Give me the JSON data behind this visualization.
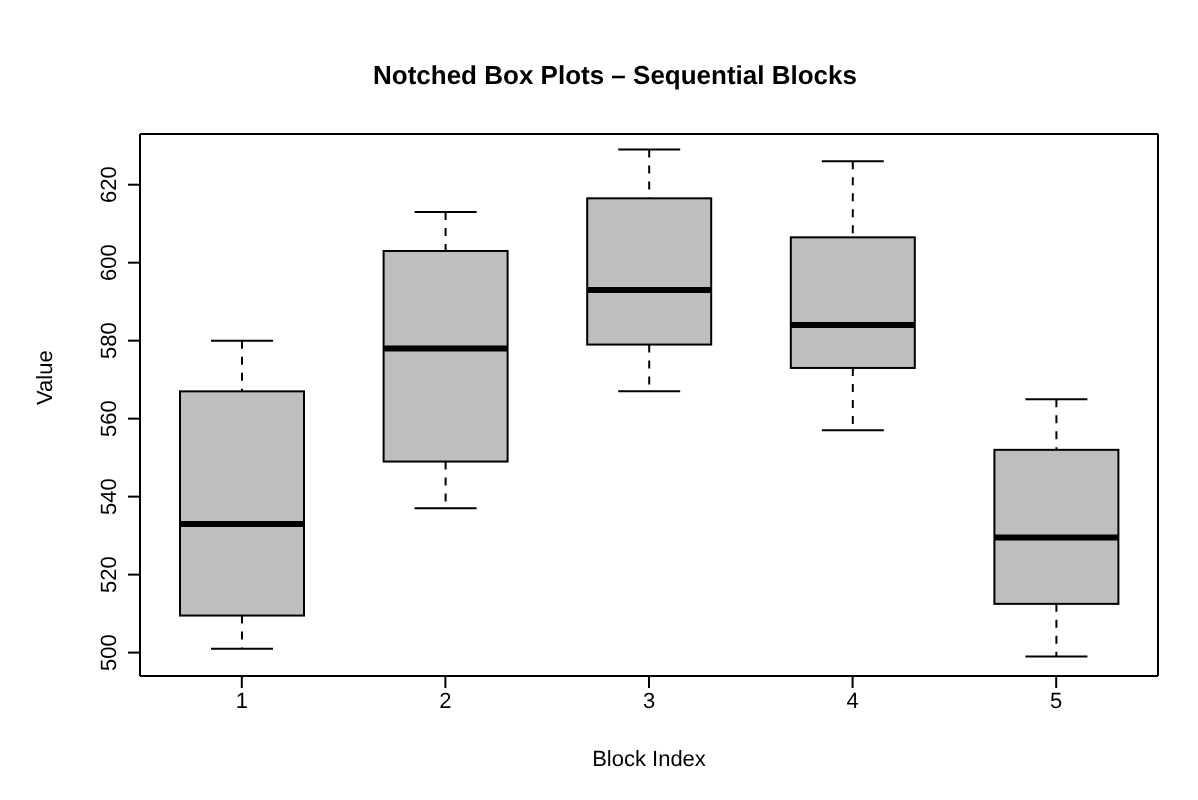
{
  "chart_data": {
    "type": "box",
    "title": "Notched Box Plots – Sequential Blocks",
    "xlabel": "Block Index",
    "ylabel": "Value",
    "categories": [
      "1",
      "2",
      "3",
      "4",
      "5"
    ],
    "boxes": [
      {
        "low": 501,
        "q1": 509.5,
        "median": 533,
        "q3": 567,
        "high": 580
      },
      {
        "low": 537,
        "q1": 549,
        "median": 578,
        "q3": 603,
        "high": 613
      },
      {
        "low": 567,
        "q1": 579,
        "median": 593,
        "q3": 616.5,
        "high": 629
      },
      {
        "low": 557,
        "q1": 573,
        "median": 584,
        "q3": 606.5,
        "high": 626
      },
      {
        "low": 499,
        "q1": 512.5,
        "median": 529.5,
        "q3": 552,
        "high": 565
      }
    ],
    "color": "#bebebe",
    "ylim": [
      494,
      633
    ],
    "yticks": [
      500,
      520,
      540,
      560,
      580,
      600,
      620
    ],
    "grid": false
  }
}
